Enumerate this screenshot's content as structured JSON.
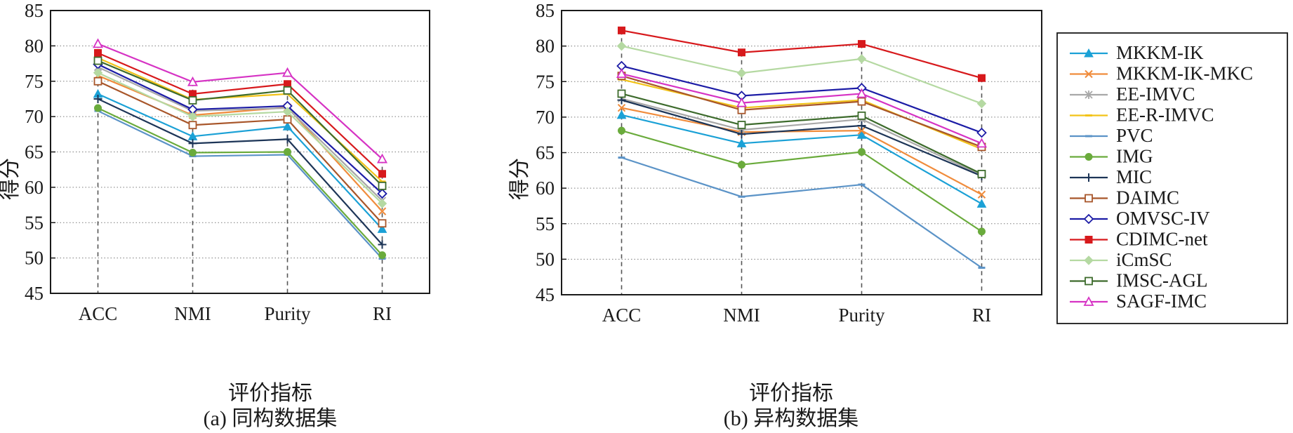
{
  "chart_data": [
    {
      "type": "line",
      "caption": "(a) 同构数据集",
      "xlabel": "评价指标",
      "ylabel": "得分",
      "categories": [
        "ACC",
        "NMI",
        "Purity",
        "RI"
      ],
      "ylim": [
        45,
        85
      ],
      "yticks": [
        45,
        50,
        55,
        60,
        65,
        70,
        75,
        80,
        85
      ],
      "grid": "horizontal-dotted",
      "series": [
        {
          "name": "MKKM-IK",
          "values": [
            73.2,
            67.2,
            68.6,
            54.1
          ]
        },
        {
          "name": "MKKM-IK-MKC",
          "values": [
            75.8,
            70.2,
            71.3,
            56.6
          ]
        },
        {
          "name": "EE-IMVC",
          "values": [
            77.0,
            70.8,
            71.2,
            58.1
          ]
        },
        {
          "name": "EE-R-IMVC",
          "values": [
            78.3,
            72.4,
            73.2,
            60.8
          ]
        },
        {
          "name": "PVC",
          "values": [
            70.8,
            64.4,
            64.6,
            49.9
          ]
        },
        {
          "name": "IMG",
          "values": [
            71.2,
            64.9,
            65.0,
            50.4
          ]
        },
        {
          "name": "MIC",
          "values": [
            72.5,
            66.2,
            66.8,
            51.9
          ]
        },
        {
          "name": "DAIMC",
          "values": [
            75.0,
            68.8,
            69.6,
            54.9
          ]
        },
        {
          "name": "OMVSC-IV",
          "values": [
            77.4,
            71.0,
            71.5,
            59.1
          ]
        },
        {
          "name": "CDIMC-net",
          "values": [
            79.0,
            73.2,
            74.6,
            61.9
          ]
        },
        {
          "name": "iCmSC",
          "values": [
            76.2,
            70.0,
            70.7,
            57.7
          ]
        },
        {
          "name": "IMSC-AGL",
          "values": [
            77.9,
            72.3,
            73.7,
            60.2
          ]
        },
        {
          "name": "SAGF-IMC",
          "values": [
            80.3,
            74.9,
            76.2,
            64.0
          ]
        }
      ]
    },
    {
      "type": "line",
      "caption": "(b) 异构数据集",
      "xlabel": "评价指标",
      "ylabel": "得分",
      "categories": [
        "ACC",
        "NMI",
        "Purity",
        "RI"
      ],
      "ylim": [
        45,
        85
      ],
      "yticks": [
        45,
        50,
        55,
        60,
        65,
        70,
        75,
        80,
        85
      ],
      "grid": "horizontal-dotted",
      "legend_position": "right",
      "series": [
        {
          "name": "MKKM-IK",
          "values": [
            70.3,
            66.3,
            67.5,
            57.8
          ]
        },
        {
          "name": "MKKM-IK-MKC",
          "values": [
            71.3,
            67.9,
            68.1,
            59.1
          ]
        },
        {
          "name": "EE-IMVC",
          "values": [
            72.6,
            68.2,
            69.7,
            61.8
          ]
        },
        {
          "name": "EE-R-IMVC",
          "values": [
            75.3,
            71.3,
            72.4,
            65.5
          ]
        },
        {
          "name": "PVC",
          "values": [
            64.3,
            58.8,
            60.5,
            48.8
          ]
        },
        {
          "name": "IMG",
          "values": [
            68.1,
            63.3,
            65.1,
            53.9
          ]
        },
        {
          "name": "MIC",
          "values": [
            72.4,
            67.6,
            68.8,
            61.7
          ]
        },
        {
          "name": "DAIMC",
          "values": [
            75.8,
            71.0,
            72.2,
            65.8
          ]
        },
        {
          "name": "OMVSC-IV",
          "values": [
            77.2,
            73.0,
            74.1,
            67.8
          ]
        },
        {
          "name": "CDIMC-net",
          "values": [
            82.2,
            79.1,
            80.3,
            75.5
          ]
        },
        {
          "name": "iCmSC",
          "values": [
            80.0,
            76.2,
            78.2,
            71.9
          ]
        },
        {
          "name": "IMSC-AGL",
          "values": [
            73.3,
            68.9,
            70.2,
            62.0
          ]
        },
        {
          "name": "SAGF-IMC",
          "values": [
            76.1,
            72.0,
            73.3,
            66.3
          ]
        }
      ]
    }
  ],
  "legend": [
    {
      "name": "MKKM-IK",
      "color": "#1ba1d6",
      "marker": "triangle-filled"
    },
    {
      "name": "MKKM-IK-MKC",
      "color": "#f08c3c",
      "marker": "x"
    },
    {
      "name": "EE-IMVC",
      "color": "#a8a8a8",
      "marker": "asterisk"
    },
    {
      "name": "EE-R-IMVC",
      "color": "#f2c318",
      "marker": "dash"
    },
    {
      "name": "PVC",
      "color": "#5b93c7",
      "marker": "dash"
    },
    {
      "name": "IMG",
      "color": "#6aab3c",
      "marker": "circle-filled"
    },
    {
      "name": "MIC",
      "color": "#1d3557",
      "marker": "plus"
    },
    {
      "name": "DAIMC",
      "color": "#a8562a",
      "marker": "square-open"
    },
    {
      "name": "OMVSC-IV",
      "color": "#1c1ca6",
      "marker": "diamond-open"
    },
    {
      "name": "CDIMC-net",
      "color": "#d7191c",
      "marker": "square-filled"
    },
    {
      "name": "iCmSC",
      "color": "#b5d9a2",
      "marker": "diamond-filled"
    },
    {
      "name": "IMSC-AGL",
      "color": "#3d6b2c",
      "marker": "square-open"
    },
    {
      "name": "SAGF-IMC",
      "color": "#d633c4",
      "marker": "triangle-open"
    }
  ]
}
